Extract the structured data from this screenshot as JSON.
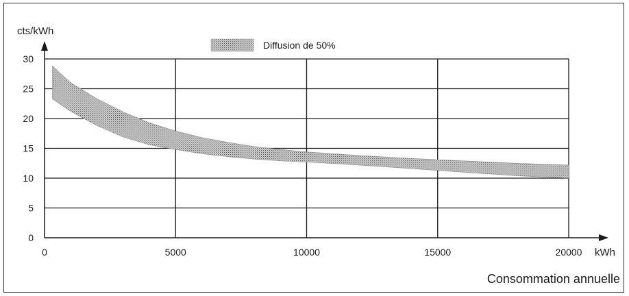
{
  "chart_data": {
    "type": "area",
    "title": "",
    "ylabel": "cts/kWh",
    "xunit": "kWh",
    "xlabel": "Consommation annuelle",
    "xlim": [
      0,
      20000
    ],
    "ylim": [
      0,
      30
    ],
    "xticks": [
      0,
      5000,
      10000,
      15000,
      20000
    ],
    "yticks": [
      0,
      5,
      10,
      15,
      20,
      25,
      30
    ],
    "grid": true,
    "legend_position": "top-center",
    "series": [
      {
        "name": "Diffusion de 50%",
        "fill_color": "#bdbdbd",
        "x": [
          300,
          1000,
          2000,
          3000,
          4000,
          5000,
          6000,
          7000,
          8000,
          9000,
          10000,
          12000,
          14000,
          16000,
          18000,
          20000
        ],
        "upper": [
          28.8,
          26.0,
          23.3,
          21.1,
          19.3,
          17.9,
          16.8,
          16.0,
          15.3,
          14.8,
          14.4,
          13.8,
          13.3,
          12.9,
          12.5,
          12.2
        ],
        "lower": [
          23.3,
          21.2,
          18.8,
          16.9,
          15.6,
          14.8,
          14.1,
          13.6,
          13.2,
          12.9,
          12.7,
          12.2,
          11.6,
          11.0,
          10.4,
          10.0
        ]
      }
    ]
  }
}
